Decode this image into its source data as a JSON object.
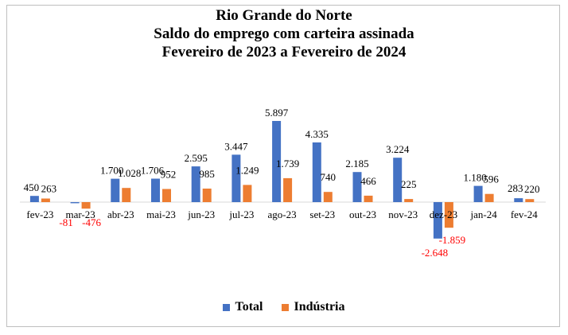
{
  "chart_data": {
    "type": "bar",
    "title": [
      "Rio Grande do Norte",
      "Saldo do emprego com carteira assinada",
      "Fevereiro de 2023 a Fevereiro de 2024"
    ],
    "categories": [
      "fev-23",
      "mar-23",
      "abr-23",
      "mai-23",
      "jun-23",
      "jul-23",
      "ago-23",
      "set-23",
      "out-23",
      "nov-23",
      "dez-23",
      "jan-24",
      "fev-24"
    ],
    "series": [
      {
        "name": "Total",
        "color": "#4472C4",
        "values": [
          450,
          -81,
          1700,
          1706,
          2595,
          3447,
          5897,
          4335,
          2185,
          3224,
          -2648,
          1180,
          283
        ],
        "labels": [
          "450",
          "-81",
          "1.700",
          "1.706",
          "2.595",
          "3.447",
          "5.897",
          "4.335",
          "2.185",
          "3.224",
          "-2.648",
          "1.180",
          "283"
        ]
      },
      {
        "name": "Indústria",
        "color": "#ED7D31",
        "values": [
          263,
          -476,
          1028,
          952,
          985,
          1249,
          1739,
          740,
          466,
          225,
          -1859,
          596,
          220
        ],
        "labels": [
          "263",
          "-476",
          "1.028",
          "952",
          "985",
          "1.249",
          "1.739",
          "740",
          "466",
          "225",
          "-1.859",
          "596",
          "220"
        ]
      }
    ],
    "negative_label_color": "#FF0000",
    "ylim": [
      -2648,
      5897
    ],
    "grid": false,
    "legend_position": "bottom"
  }
}
